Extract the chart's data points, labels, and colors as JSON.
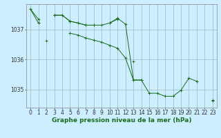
{
  "background_color": "#cceeff",
  "plot_bg_color": "#cceeff",
  "grid_color": "#99bbbb",
  "line_color": "#1a6b1a",
  "marker": "+",
  "xlabel": "Graphe pression niveau de la mer (hPa)",
  "xlabel_fontsize": 6.5,
  "tick_fontsize": 5.5,
  "ylim": [
    1034.4,
    1037.85
  ],
  "xlim": [
    -0.5,
    23.5
  ],
  "yticks": [
    1035,
    1036,
    1037
  ],
  "xticks": [
    0,
    1,
    2,
    3,
    4,
    5,
    6,
    7,
    8,
    9,
    10,
    11,
    12,
    13,
    14,
    15,
    16,
    17,
    18,
    19,
    20,
    21,
    22,
    23
  ],
  "series": [
    [
      1037.68,
      1037.35,
      null,
      1037.48,
      1037.48,
      1037.28,
      1037.22,
      1037.15,
      1037.15,
      1037.15,
      1037.22,
      1037.35,
      null,
      null,
      null,
      null,
      null,
      null,
      null,
      null,
      null,
      null,
      null,
      null
    ],
    [
      null,
      null,
      1036.62,
      null,
      null,
      1036.88,
      1036.82,
      1036.72,
      1036.65,
      1036.58,
      1036.48,
      1036.38,
      1036.05,
      1035.32,
      1035.32,
      1034.88,
      1034.88,
      1034.78,
      1034.78,
      1034.98,
      1035.38,
      1035.28,
      null,
      1034.65
    ],
    [
      1037.68,
      1037.22,
      null,
      null,
      null,
      null,
      null,
      null,
      null,
      null,
      null,
      null,
      null,
      1035.95,
      null,
      null,
      null,
      null,
      null,
      null,
      null,
      null,
      null,
      1034.62
    ],
    [
      null,
      1037.22,
      null,
      1037.48,
      1037.48,
      1037.28,
      1037.22,
      1037.15,
      1037.15,
      null,
      1037.22,
      1037.38,
      1037.18,
      1035.32,
      1035.32,
      null,
      null,
      null,
      null,
      null,
      null,
      null,
      null,
      null
    ]
  ]
}
